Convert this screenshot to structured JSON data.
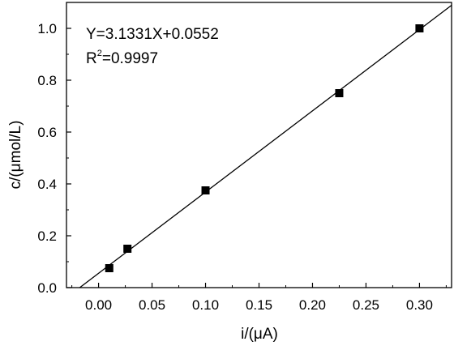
{
  "chart_data": {
    "type": "scatter",
    "xlabel": "i/(μA)",
    "ylabel": "c/(μmol/L)",
    "xlim": [
      -0.03,
      0.33
    ],
    "ylim": [
      0.0,
      1.1
    ],
    "x_ticks": [
      0.0,
      0.05,
      0.1,
      0.15,
      0.2,
      0.25,
      0.3
    ],
    "x_tick_labels": [
      "0.00",
      "0.05",
      "0.10",
      "0.15",
      "0.20",
      "0.25",
      "0.30"
    ],
    "y_ticks": [
      0.0,
      0.2,
      0.4,
      0.6,
      0.8,
      1.0
    ],
    "y_tick_labels": [
      "0.0",
      "0.2",
      "0.4",
      "0.6",
      "0.8",
      "1.0"
    ],
    "grid": false,
    "series": [
      {
        "marker": "square",
        "color": "#000000",
        "x": [
          0.01,
          0.027,
          0.1,
          0.225,
          0.3
        ],
        "y": [
          0.075,
          0.15,
          0.375,
          0.75,
          1.0
        ]
      }
    ],
    "fit_line": {
      "slope": 3.1331,
      "intercept": 0.0552,
      "x_range": [
        -0.018,
        0.33
      ],
      "color": "#000000"
    },
    "annotations": {
      "equation": "Y=3.1331X+0.0552",
      "r2_prefix": "R",
      "r2_sup": "2",
      "r2_value": "=0.9997"
    }
  }
}
